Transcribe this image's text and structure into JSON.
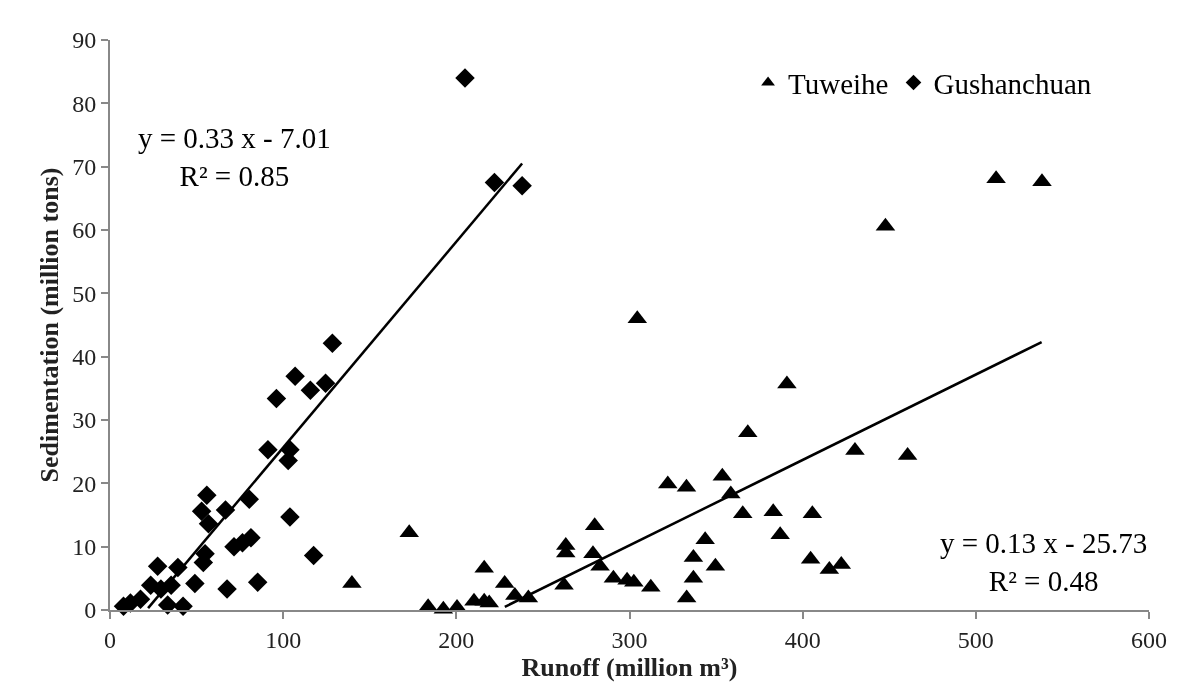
{
  "chart_data": {
    "type": "scatter",
    "xlabel": "Runoff (million m³)",
    "ylabel": "Sedimentation (million tons)",
    "xlim": [
      0,
      600
    ],
    "xticks": [
      0,
      100,
      200,
      300,
      400,
      500,
      600
    ],
    "ylim": [
      0,
      90
    ],
    "yticks": [
      0,
      10,
      20,
      30,
      40,
      50,
      60,
      70,
      80,
      90
    ],
    "grid": false,
    "legend": "top right",
    "annotations": [
      "y = 0.33 x - 7.01\nR² = 0.85",
      "y = 0.13 x - 25.73\nR² = 0.48"
    ],
    "series": [
      {
        "name": "Tuweihe",
        "color": "#000000",
        "marker": "triangle",
        "x": [
          172.8,
          304.5,
          390.9,
          368.3,
          322.1,
          332.9,
          353.6,
          358.5,
          365.4,
          383,
          387,
          279.9,
          263.2,
          263.2,
          262.2,
          278.9,
          283,
          290.7,
          298.6,
          302.5,
          312.3,
          343.7,
          336.9,
          336.9,
          333,
          349.6,
          216.1,
          227.9,
          233.8,
          241.6,
          183.7,
          192.5,
          200.4,
          210.2,
          216.1,
          219,
          139.7,
          511.7,
          538.2,
          447.8,
          430.2,
          460.6,
          405.6,
          404.6,
          415.4,
          422.3
        ],
        "values": [
          12.2,
          46,
          35.7,
          28,
          19.9,
          19.4,
          21.1,
          18.3,
          15.2,
          15.5,
          11.9,
          13.3,
          10.2,
          9,
          3.9,
          8.9,
          6.9,
          5,
          4.7,
          4.4,
          3.6,
          11.1,
          8.3,
          5,
          1.9,
          6.9,
          6.6,
          4.2,
          2.3,
          1.9,
          0.5,
          0.1,
          0.4,
          1.4,
          1.4,
          1.1,
          4.2,
          68.1,
          67.6,
          60.6,
          25.2,
          24.4,
          15.2,
          8,
          6.4,
          7.2
        ]
      },
      {
        "name": "Gushanchuan",
        "color": "#000000",
        "marker": "diamond",
        "x": [
          205,
          222,
          238,
          128.4,
          106.9,
          96.1,
          115.7,
          124.5,
          91.2,
          103.9,
          102.9,
          103.9,
          117.6,
          85.3,
          67.6,
          80.4,
          81.4,
          76.5,
          71.6,
          66.7,
          55.9,
          52.9,
          56.9,
          54.9,
          53.9,
          49,
          42.2,
          27.5,
          39.2,
          23.5,
          17.6,
          11.8,
          7.8,
          33.3,
          29.4,
          35.3
        ],
        "values": [
          84,
          67.5,
          67,
          42.1,
          36.9,
          33.4,
          34.7,
          35.8,
          25.3,
          25.3,
          23.6,
          14.7,
          8.6,
          4.4,
          3.3,
          17.5,
          11.4,
          10.6,
          10,
          15.8,
          18.1,
          15.6,
          13.6,
          8.9,
          7.5,
          4.2,
          0.6,
          6.9,
          6.7,
          3.9,
          1.7,
          1.1,
          0.6,
          0.8,
          3.3,
          3.9
        ]
      },
      {
        "type": "line",
        "color": "#000000",
        "marker": "none",
        "line_style": "solid",
        "x": [
          22,
          238
        ],
        "values": [
          0.3,
          70.5
        ]
      },
      {
        "type": "line",
        "color": "#000000",
        "marker": "none",
        "line_style": "solid",
        "x": [
          228,
          538
        ],
        "values": [
          0.5,
          42.3
        ]
      }
    ]
  }
}
